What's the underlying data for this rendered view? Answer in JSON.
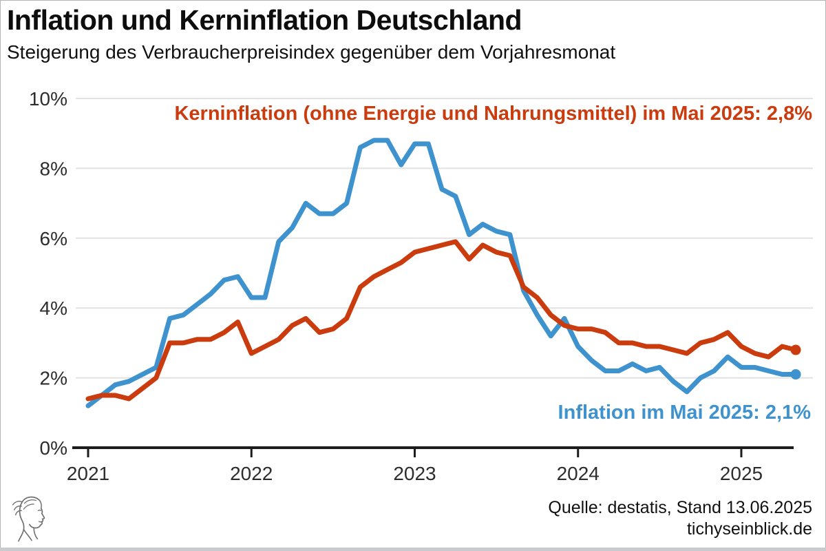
{
  "header": {
    "title": "Inflation und Kerninflation Deutschland",
    "subtitle": "Steigerung des Verbraucherpreisindex gegenüber dem Vorjahresmonat"
  },
  "annotations": {
    "core": "Kerninflation (ohne Energie und Nahrungsmittel) im Mai 2025: 2,8%",
    "headline": "Inflation im Mai 2025: 2,1%"
  },
  "footer": {
    "source": "Quelle: destatis, Stand 13.06.2025",
    "website": "tichyseinblick.de"
  },
  "colors": {
    "inflation": "#3e92cd",
    "core": "#ca3b0e",
    "grid": "#e2e2e2",
    "axis": "#1c1c1c",
    "label": "#2d2d2d"
  },
  "chart_data": {
    "type": "line",
    "title": "Inflation und Kerninflation Deutschland",
    "xlabel": "",
    "ylabel": "",
    "ylim": [
      0,
      10
    ],
    "grid": "horizontal",
    "legend_position": "none (inline annotations)",
    "x_start": "2021-01",
    "x_end": "2025-05",
    "months_per_point": 1,
    "x_tick_labels": [
      "2021",
      "2022",
      "2023",
      "2024",
      "2025"
    ],
    "y_ticks": [
      0,
      2,
      4,
      6,
      8,
      10
    ],
    "y_tick_labels": [
      "0%",
      "2%",
      "4%",
      "6%",
      "8%",
      "10%"
    ],
    "series": [
      {
        "name": "Inflation",
        "color": "#3e92cd",
        "last_value_label": "2,1%",
        "values": [
          1.2,
          1.5,
          1.8,
          1.9,
          2.1,
          2.3,
          3.7,
          3.8,
          4.1,
          4.4,
          4.8,
          4.9,
          4.3,
          4.3,
          5.9,
          6.3,
          7.0,
          6.7,
          6.7,
          7.0,
          8.6,
          8.8,
          8.8,
          8.1,
          8.7,
          8.7,
          7.4,
          7.2,
          6.1,
          6.4,
          6.2,
          6.1,
          4.5,
          3.8,
          3.2,
          3.7,
          2.9,
          2.5,
          2.2,
          2.2,
          2.4,
          2.2,
          2.3,
          1.9,
          1.6,
          2.0,
          2.2,
          2.6,
          2.3,
          2.3,
          2.2,
          2.1,
          2.1
        ]
      },
      {
        "name": "Kerninflation (ohne Energie und Nahrungsmittel)",
        "color": "#ca3b0e",
        "last_value_label": "2,8%",
        "values": [
          1.4,
          1.5,
          1.5,
          1.4,
          1.7,
          2.0,
          3.0,
          3.0,
          3.1,
          3.1,
          3.3,
          3.6,
          2.7,
          2.9,
          3.1,
          3.5,
          3.7,
          3.3,
          3.4,
          3.7,
          4.6,
          4.9,
          5.1,
          5.3,
          5.6,
          5.7,
          5.8,
          5.9,
          5.4,
          5.8,
          5.6,
          5.5,
          4.6,
          4.3,
          3.8,
          3.5,
          3.4,
          3.4,
          3.3,
          3.0,
          3.0,
          2.9,
          2.9,
          2.8,
          2.7,
          3.0,
          3.1,
          3.3,
          2.9,
          2.7,
          2.6,
          2.9,
          2.8
        ]
      }
    ]
  }
}
